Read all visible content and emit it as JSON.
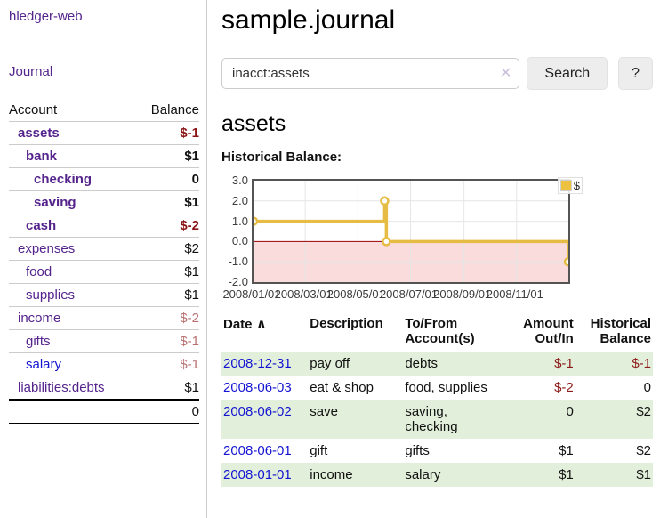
{
  "sidebar": {
    "app_title": "hledger-web",
    "nav": {
      "journal_label": "Journal"
    },
    "accounts_table": {
      "headers": {
        "account": "Account",
        "balance": "Balance"
      },
      "rows": [
        {
          "name": "assets",
          "balance": "$-1"
        },
        {
          "name": "bank",
          "balance": "$1"
        },
        {
          "name": "checking",
          "balance": "0"
        },
        {
          "name": "saving",
          "balance": "$1"
        },
        {
          "name": "cash",
          "balance": "$-2"
        },
        {
          "name": "expenses",
          "balance": "$2"
        },
        {
          "name": "food",
          "balance": "$1"
        },
        {
          "name": "supplies",
          "balance": "$1"
        },
        {
          "name": "income",
          "balance": "$-2"
        },
        {
          "name": "gifts",
          "balance": "$-1"
        },
        {
          "name": "salary",
          "balance": "$-1"
        },
        {
          "name": "liabilities:debts",
          "balance": "$1"
        }
      ],
      "total": "0"
    }
  },
  "main": {
    "title": "sample.journal",
    "search": {
      "value": "inacct:assets",
      "clear_icon": "✕",
      "search_button": "Search",
      "help_button": "?"
    },
    "account_heading": "assets",
    "chart_heading": "Historical Balance:"
  },
  "chart_data": {
    "type": "line",
    "step": true,
    "title": "Historical Balance:",
    "series": [
      {
        "name": "$",
        "color": "#e6bc45",
        "points": [
          [
            "2008-01-01",
            1
          ],
          [
            "2008-06-01",
            2
          ],
          [
            "2008-06-03",
            0
          ],
          [
            "2008-12-31",
            -1
          ]
        ]
      }
    ],
    "x_range": [
      "2008-01-01",
      "2008-12-31"
    ],
    "x_ticks": [
      {
        "date": "2008-01-01",
        "label": "2008/01/01"
      },
      {
        "date": "2008-03-01",
        "label": "2008/03/01"
      },
      {
        "date": "2008-05-01",
        "label": "2008/05/01"
      },
      {
        "date": "2008-07-01",
        "label": "2008/07/01"
      },
      {
        "date": "2008-09-01",
        "label": "2008/09/01"
      },
      {
        "date": "2008-11-01",
        "label": "2008/11/01"
      }
    ],
    "y_ticks": [
      {
        "value": 3,
        "label": "3.0"
      },
      {
        "value": 2,
        "label": "2.0"
      },
      {
        "value": 1,
        "label": "1.0"
      },
      {
        "value": 0,
        "label": "0.0"
      },
      {
        "value": -1,
        "label": "-1.0"
      },
      {
        "value": -2,
        "label": "-2.0"
      }
    ],
    "ylim": [
      -2,
      3
    ],
    "grid_color": "#e6e6e6",
    "negative_fill": "#fadcdc",
    "zero_line_color": "#990000",
    "legend": {
      "label": "$",
      "position": "top-right"
    }
  },
  "register_table": {
    "headers": {
      "date": "Date",
      "sort_icon": "∧",
      "description": "Description",
      "account": "To/From Account(s)",
      "amount": "Amount Out/In",
      "balance": "Historical Balance"
    },
    "rows": [
      {
        "date": "2008-12-31",
        "description": "pay off",
        "account": "debts",
        "amount": "$-1",
        "balance": "$-1"
      },
      {
        "date": "2008-06-03",
        "description": "eat & shop",
        "account": "food, supplies",
        "amount": "$-2",
        "balance": "0"
      },
      {
        "date": "2008-06-02",
        "description": "save",
        "account": "saving, checking",
        "amount": "0",
        "balance": "$2"
      },
      {
        "date": "2008-06-01",
        "description": "gift",
        "account": "gifts",
        "amount": "$1",
        "balance": "$2"
      },
      {
        "date": "2008-01-01",
        "description": "income",
        "account": "salary",
        "amount": "$1",
        "balance": "$1"
      }
    ]
  }
}
